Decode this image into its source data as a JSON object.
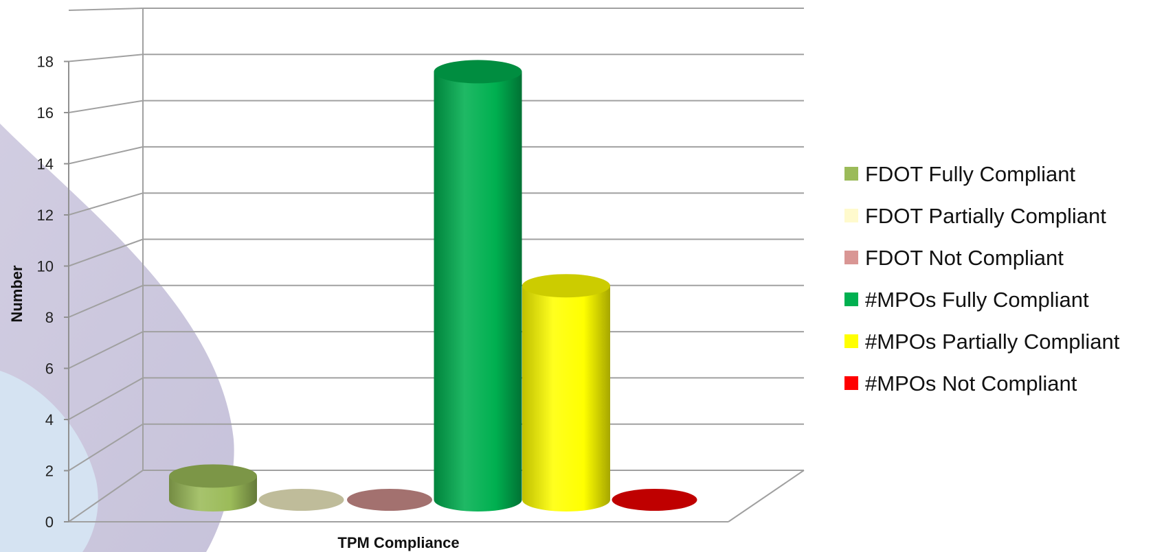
{
  "chart_data": {
    "type": "bar",
    "title": "",
    "xlabel": "TPM Compliance",
    "ylabel": "Number",
    "ylim": [
      0,
      20
    ],
    "yticks": [
      0,
      2,
      4,
      6,
      8,
      10,
      12,
      14,
      16,
      18
    ],
    "grid": true,
    "legend_position": "right",
    "categories": [
      "TPM Compliance"
    ],
    "series": [
      {
        "name": "FDOT Fully Compliant",
        "values": [
          1
        ],
        "color": "#9bbb59"
      },
      {
        "name": "FDOT Partially Compliant",
        "values": [
          0
        ],
        "color": "#fffacd"
      },
      {
        "name": "FDOT Not Compliant",
        "values": [
          0
        ],
        "color": "#d99694"
      },
      {
        "name": "#MPOs Fully Compliant",
        "values": [
          18
        ],
        "color": "#00b050"
      },
      {
        "name": "#MPOs Partially Compliant",
        "values": [
          9
        ],
        "color": "#ffff00"
      },
      {
        "name": "#MPOs Not Compliant",
        "values": [
          0
        ],
        "color": "#ff0000"
      }
    ]
  }
}
